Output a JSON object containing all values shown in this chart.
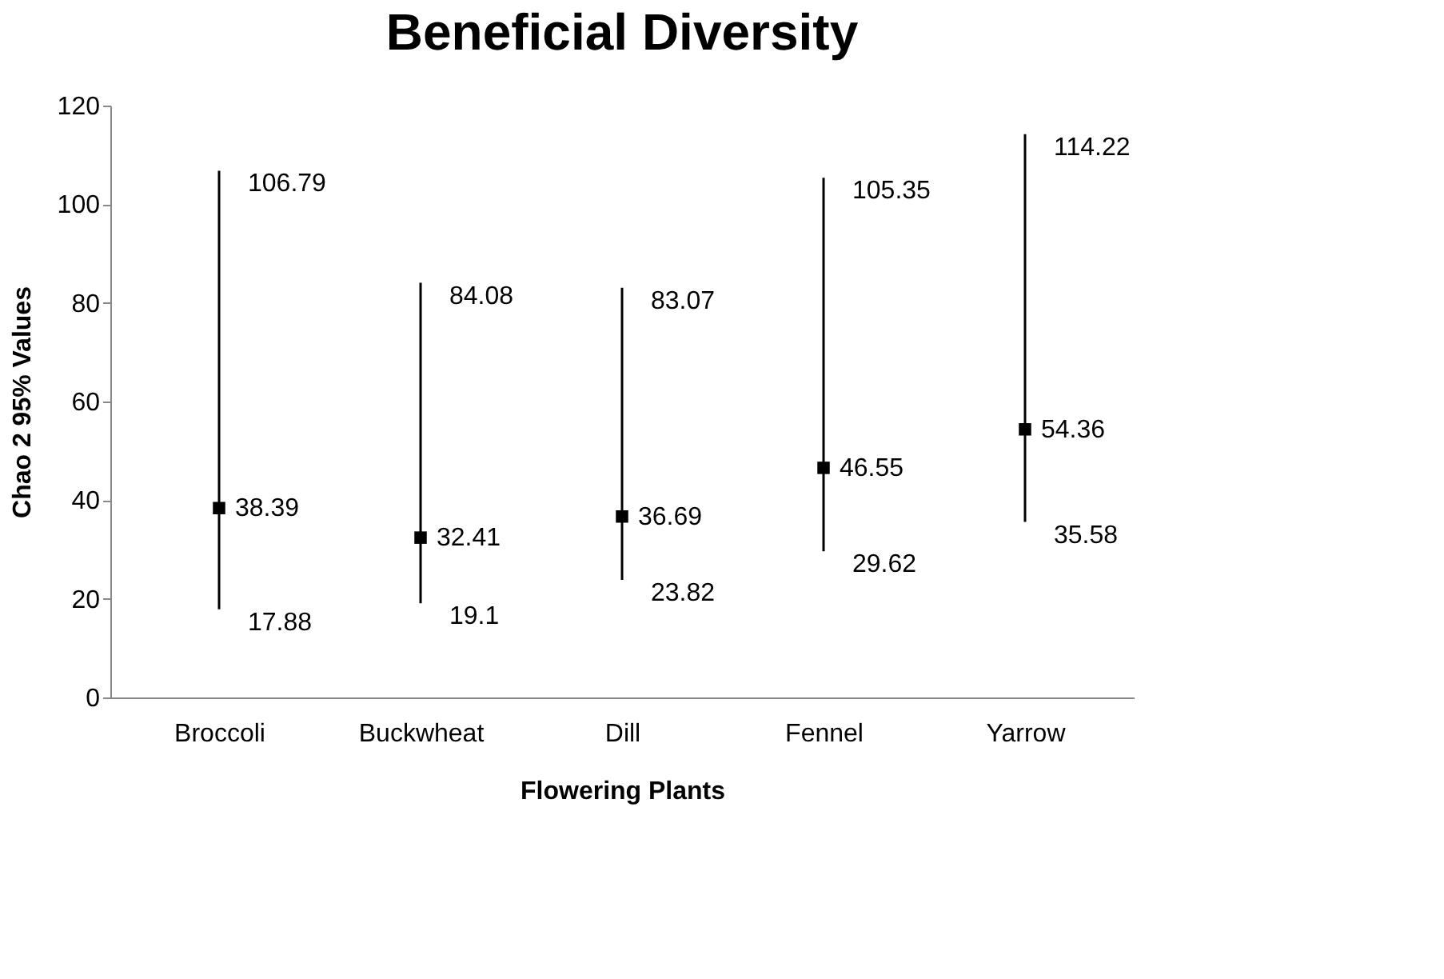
{
  "chart_data": {
    "type": "scatter",
    "title": "Beneficial Diversity",
    "xlabel": "Flowering Plants",
    "ylabel": "Chao 2  95% Values",
    "categories": [
      "Broccoli",
      "Buckwheat",
      "Dill",
      "Fennel",
      "Yarrow"
    ],
    "values": [
      38.39,
      32.41,
      36.69,
      46.55,
      54.36
    ],
    "errors": [
      [
        17.88,
        106.79
      ],
      [
        19.1,
        84.08
      ],
      [
        23.82,
        83.07
      ],
      [
        29.62,
        105.35
      ],
      [
        35.58,
        114.22
      ]
    ],
    "color": "#000000",
    "marker": "square",
    "data_labels": true,
    "annotations": [
      {
        "text": "106.79",
        "x": "Broccoli",
        "y": 106.79
      },
      {
        "text": "17.88",
        "x": "Broccoli",
        "y": 17.88
      },
      {
        "text": "84.08",
        "x": "Buckwheat",
        "y": 84.08
      },
      {
        "text": "19.1",
        "x": "Buckwheat",
        "y": 19.1
      },
      {
        "text": "83.07",
        "x": "Dill",
        "y": 83.07
      },
      {
        "text": "23.82",
        "x": "Dill",
        "y": 23.82
      },
      {
        "text": "105.35",
        "x": "Fennel",
        "y": 105.35
      },
      {
        "text": "29.62",
        "x": "Fennel",
        "y": 29.62
      },
      {
        "text": "114.22",
        "x": "Yarrow",
        "y": 114.22
      },
      {
        "text": "35.58",
        "x": "Yarrow",
        "y": 35.58
      }
    ],
    "ylim": [
      0,
      120
    ],
    "yticks": [
      0,
      20,
      40,
      60,
      80,
      100,
      120
    ],
    "grid": false
  }
}
